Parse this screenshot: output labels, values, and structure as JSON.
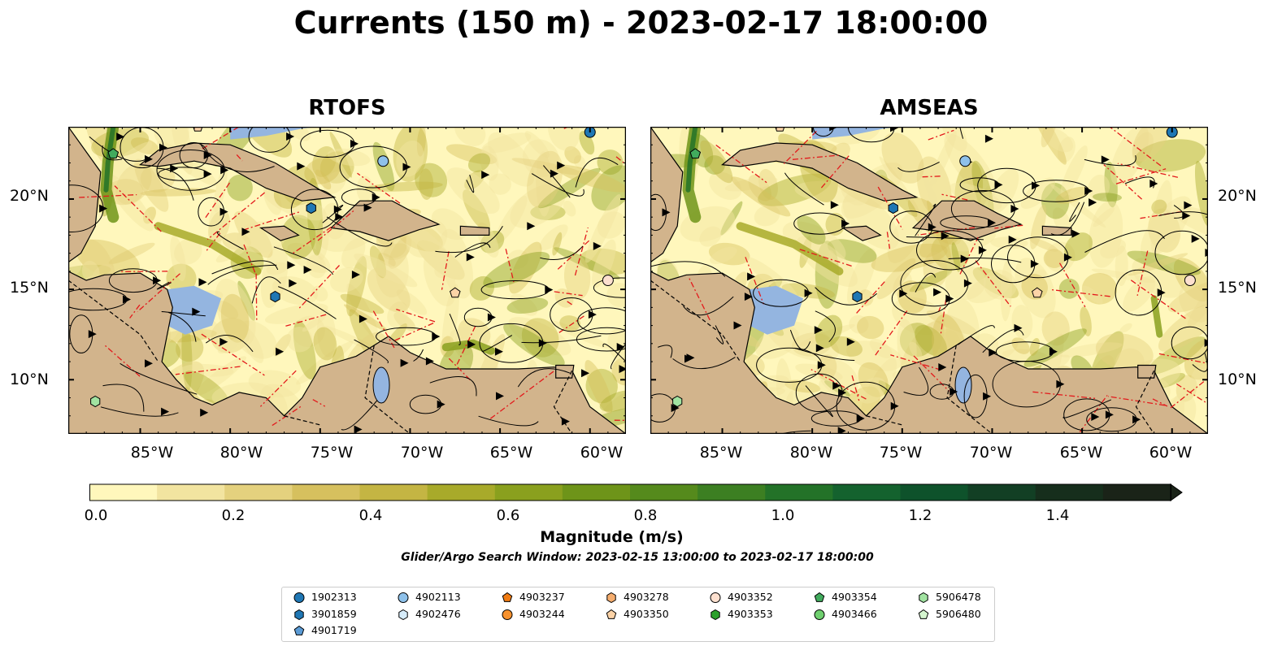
{
  "title": "Currents (150 m) - 2023-02-17 18:00:00",
  "panels": [
    {
      "name": "RTOFS"
    },
    {
      "name": "AMSEAS"
    }
  ],
  "map": {
    "lon_range": [
      -89,
      -58
    ],
    "lat_range": [
      7,
      24
    ],
    "lon_ticks": [
      {
        "value": -85,
        "label": "85°W"
      },
      {
        "value": -80,
        "label": "80°W"
      },
      {
        "value": -75,
        "label": "75°W"
      },
      {
        "value": -70,
        "label": "70°W"
      },
      {
        "value": -65,
        "label": "65°W"
      },
      {
        "value": -60,
        "label": "60°W"
      }
    ],
    "lat_ticks": [
      {
        "value": 20,
        "label": "20°N"
      },
      {
        "value": 15,
        "label": "15°N"
      },
      {
        "value": 10,
        "label": "10°N"
      }
    ],
    "colors": {
      "land": "#d2b48c",
      "shelf_water": "#94b5e0",
      "eez_lines": "#e31a1c",
      "streamlines": "#000000"
    }
  },
  "colorbar": {
    "label": "Magnitude (m/s)",
    "tick_labels": [
      "0.0",
      "0.2",
      "0.4",
      "0.6",
      "0.8",
      "1.0",
      "1.2",
      "1.4"
    ],
    "range": [
      0,
      1.5
    ],
    "colors": [
      "#fff7bc",
      "#f2e4a0",
      "#e4d17e",
      "#d6c05e",
      "#c4b543",
      "#a8aa2a",
      "#8aa01e",
      "#6e9419",
      "#558a1c",
      "#3c7f22",
      "#237228",
      "#14622e",
      "#0e522b",
      "#123f24",
      "#162e1c",
      "#1a2318"
    ]
  },
  "search_window": "Glider/Argo Search Window: 2023-02-15 13:00:00 to 2023-02-17 18:00:00",
  "legend": [
    {
      "id": "1902313",
      "marker": "circle",
      "color": "#1f77b4"
    },
    {
      "id": "3901859",
      "marker": "hexagon",
      "color": "#1f77b4"
    },
    {
      "id": "4901719",
      "marker": "pentagon",
      "color": "#5b9bd5"
    },
    {
      "id": "4902113",
      "marker": "circle",
      "color": "#8ec1ea"
    },
    {
      "id": "4902476",
      "marker": "hexagon",
      "color": "#d6ecfa"
    },
    {
      "id": "4903237",
      "marker": "pentagon",
      "color": "#f07b12"
    },
    {
      "id": "4903244",
      "marker": "circle",
      "color": "#f7922e"
    },
    {
      "id": "4903278",
      "marker": "hexagon",
      "color": "#f5ad6e"
    },
    {
      "id": "4903350",
      "marker": "pentagon",
      "color": "#fcd3a7"
    },
    {
      "id": "4903352",
      "marker": "circle",
      "color": "#fde0cf"
    },
    {
      "id": "4903353",
      "marker": "hexagon",
      "color": "#2ca02c"
    },
    {
      "id": "4903354",
      "marker": "pentagon",
      "color": "#41ab5d"
    },
    {
      "id": "4903466",
      "marker": "circle",
      "color": "#6fcf6f"
    },
    {
      "id": "5906478",
      "marker": "hexagon",
      "color": "#a1e3a1"
    },
    {
      "id": "5906480",
      "marker": "pentagon",
      "color": "#d5f5cf"
    }
  ],
  "floats_on_map": [
    {
      "id": "1902313",
      "lon": -60,
      "lat": 23.7
    },
    {
      "id": "4902113",
      "lon": -71.5,
      "lat": 22.1
    },
    {
      "id": "3901859",
      "lon": -75.5,
      "lat": 19.5
    },
    {
      "id": "3901859",
      "lon": -77.5,
      "lat": 14.6
    },
    {
      "id": "4903354",
      "lon": -86.5,
      "lat": 22.5
    },
    {
      "id": "5906478",
      "lon": -87.5,
      "lat": 8.8
    },
    {
      "id": "4903352",
      "lon": -59,
      "lat": 15.5
    },
    {
      "id": "4903350",
      "lon": -67.5,
      "lat": 14.8
    },
    {
      "id": "4903350",
      "lon": -81.8,
      "lat": 24
    }
  ]
}
